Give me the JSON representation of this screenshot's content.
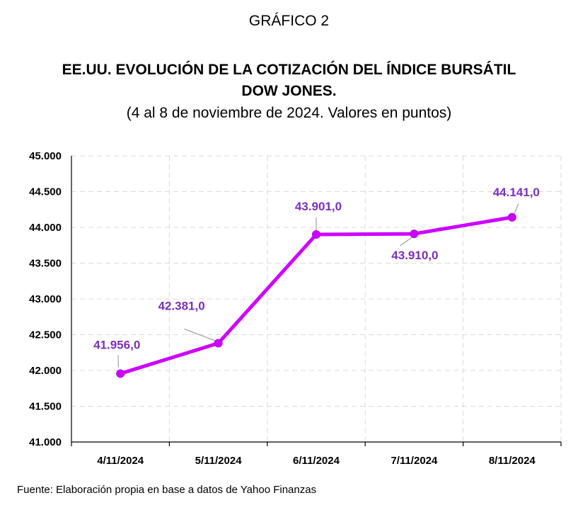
{
  "header": {
    "label": "GRÁFICO 2",
    "title_line1": "EE.UU. EVOLUCIÓN DE LA COTIZACIÓN DEL ÍNDICE BURSÁTIL",
    "title_line2": "DOW JONES.",
    "subtitle": "(4 al 8 de noviembre de 2024. Valores en puntos)"
  },
  "source": "Fuente: Elaboración propia en base a datos de Yahoo Finanzas",
  "colors": {
    "series": "#cc00ff",
    "label": "#7d2fb8",
    "grid": "#d9d9d9",
    "axis": "#000000"
  },
  "chart_data": {
    "type": "line",
    "categories": [
      "4/11/2024",
      "5/11/2024",
      "6/11/2024",
      "7/11/2024",
      "8/11/2024"
    ],
    "series": [
      {
        "values": [
          41956.0,
          42381.0,
          43901.0,
          43910.0,
          44141.0
        ]
      }
    ],
    "data_labels": [
      "41.956,0",
      "42.381,0",
      "43.901,0",
      "43.910,0",
      "44.141,0"
    ],
    "ylim": [
      41000,
      45000
    ],
    "yticks": [
      41000,
      41500,
      42000,
      42500,
      43000,
      43500,
      44000,
      44500,
      45000
    ],
    "ytick_labels": [
      "41.000",
      "41.500",
      "42.000",
      "42.500",
      "43.000",
      "43.500",
      "44.000",
      "44.500",
      "45.000"
    ],
    "grid": true,
    "xlabel": "",
    "ylabel": ""
  }
}
